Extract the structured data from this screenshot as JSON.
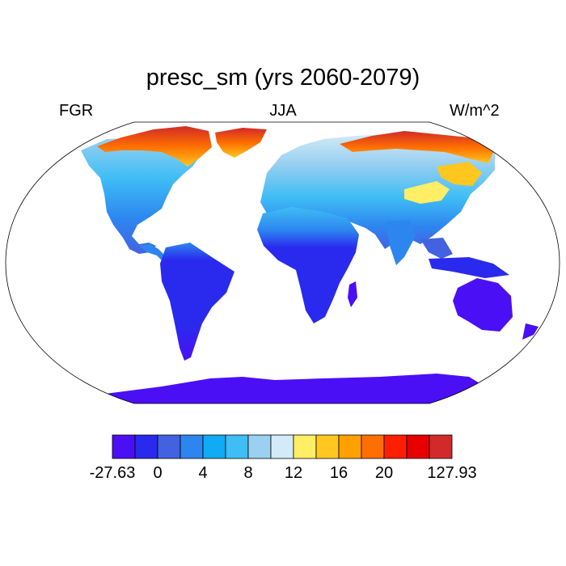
{
  "title": "presc_sm (yrs 2060-2079)",
  "left_label": "FGR",
  "center_label": "JJA",
  "right_label": "W/m^2",
  "projection": "Robinson",
  "colorbar": {
    "colors": [
      "#4B0FF5",
      "#2A2AEE",
      "#4262E2",
      "#2D86F0",
      "#10AAF5",
      "#3FBDF5",
      "#9AD0F0",
      "#D3EAF8",
      "#FFEE66",
      "#FFC71F",
      "#FFA000",
      "#FF6E00",
      "#FF1E00",
      "#E60000",
      "#D22A2A"
    ],
    "labels": [
      {
        "text": "-27.63",
        "index": 0
      },
      {
        "text": "0",
        "index": 2
      },
      {
        "text": "4",
        "index": 4
      },
      {
        "text": "8",
        "index": 6
      },
      {
        "text": "12",
        "index": 8
      },
      {
        "text": "16",
        "index": 10
      },
      {
        "text": "20",
        "index": 12
      },
      {
        "text": "127.93",
        "index": 15
      }
    ]
  }
}
